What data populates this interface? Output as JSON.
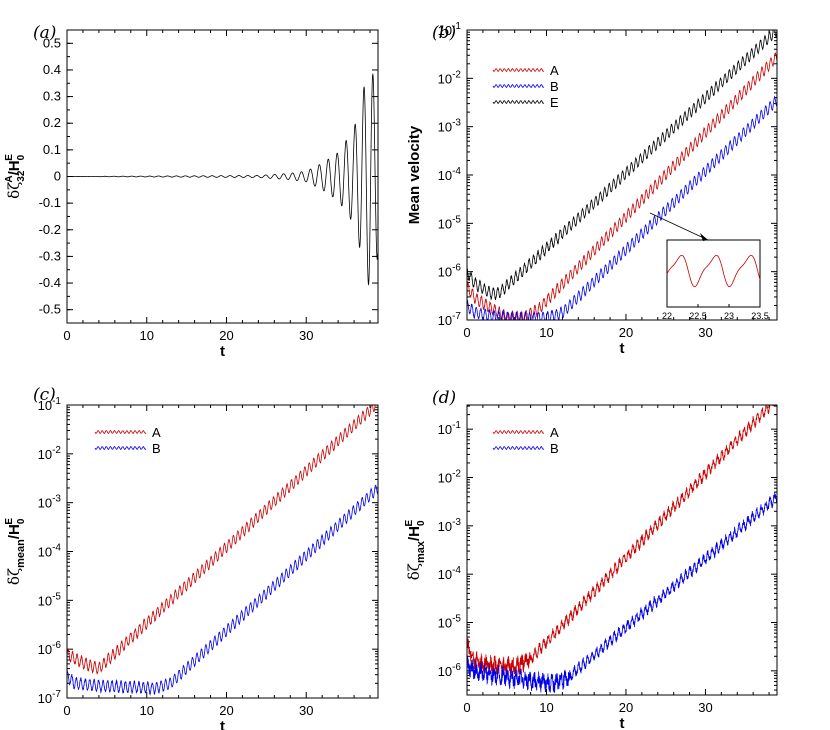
{
  "chart_data": [
    {
      "panel": "(a)",
      "type": "line",
      "xlabel": "t",
      "ylabel": "δζ^A_32/H^E_0",
      "xlim": [
        0,
        39
      ],
      "ylim": [
        -0.55,
        0.55
      ],
      "xticks": [
        "0",
        "10",
        "20",
        "30"
      ],
      "yticks": [
        "0.5",
        "0.4",
        "0.3",
        "0.2",
        "0.1",
        "0",
        "-0.1",
        "-0.2",
        "-0.3",
        "-0.4",
        "-0.5"
      ],
      "series": [
        {
          "name": "δζ^A_32",
          "color": "#000000",
          "x": [
            0,
            24,
            28,
            30,
            32,
            34,
            36,
            38,
            39
          ],
          "envelope": [
            0,
            0.004,
            0.012,
            0.02,
            0.05,
            0.09,
            0.18,
            0.43,
            0.3
          ]
        }
      ]
    },
    {
      "panel": "(b)",
      "type": "line",
      "yscale": "log",
      "xlabel": "t",
      "ylabel": "Mean velocity",
      "xlim": [
        0,
        39
      ],
      "ylim_exp": [
        -7,
        -1
      ],
      "xticks": [
        "0",
        "10",
        "20",
        "30"
      ],
      "legend": [
        "A",
        "B",
        "E"
      ],
      "series": [
        {
          "name": "A",
          "color": "#cc0000",
          "x": [
            0,
            1,
            3,
            5,
            7,
            9,
            39
          ],
          "log10y": [
            -6.3,
            -6.55,
            -6.75,
            -6.95,
            -6.95,
            -6.78,
            -1.55
          ]
        },
        {
          "name": "B",
          "color": "#0000ee",
          "x": [
            0,
            1,
            3,
            6,
            10,
            12,
            39
          ],
          "log10y": [
            -6.7,
            -6.85,
            -6.92,
            -6.96,
            -6.95,
            -6.85,
            -2.45
          ]
        },
        {
          "name": "E",
          "color": "#000000",
          "x": [
            0,
            1,
            3,
            4,
            39
          ],
          "log10y": [
            -6.0,
            -6.25,
            -6.45,
            -6.45,
            -1.0
          ]
        }
      ],
      "inset": {
        "xlim": [
          22,
          23.5
        ],
        "xticks": [
          "22",
          "22.5",
          "23",
          "23.5"
        ],
        "series": "A"
      }
    },
    {
      "panel": "(c)",
      "type": "line",
      "yscale": "log",
      "xlabel": "t",
      "ylabel": "δζ_mean/H^E_0",
      "xlim": [
        0,
        39
      ],
      "ylim_exp": [
        -7,
        -1
      ],
      "xticks": [
        "0",
        "10",
        "20",
        "30"
      ],
      "legend": [
        "A",
        "B"
      ],
      "series": [
        {
          "name": "A",
          "color": "#cc0000",
          "x": [
            0,
            1,
            3,
            4,
            39
          ],
          "log10y": [
            -6.1,
            -6.2,
            -6.35,
            -6.4,
            -0.95
          ]
        },
        {
          "name": "B",
          "color": "#0000ee",
          "x": [
            0,
            1,
            4,
            8,
            11,
            13,
            39
          ],
          "log10y": [
            -6.55,
            -6.7,
            -6.75,
            -6.78,
            -6.8,
            -6.7,
            -2.7
          ]
        }
      ]
    },
    {
      "panel": "(d)",
      "type": "line",
      "yscale": "log",
      "xlabel": "t",
      "ylabel": "δζ_max/H^E_0",
      "xlim": [
        0,
        39
      ],
      "ylim_exp": [
        -6.5,
        -0.5
      ],
      "xticks": [
        "0",
        "10",
        "20",
        "30"
      ],
      "legend": [
        "A",
        "B"
      ],
      "series": [
        {
          "name": "A",
          "color": "#cc0000",
          "x": [
            0,
            1,
            3,
            6,
            8,
            39
          ],
          "log10y": [
            -5.5,
            -5.8,
            -5.9,
            -5.9,
            -5.75,
            -0.35
          ]
        },
        {
          "name": "B",
          "color": "#0000ee",
          "x": [
            0,
            1,
            4,
            8,
            11,
            13,
            39
          ],
          "log10y": [
            -5.9,
            -6.0,
            -6.1,
            -6.2,
            -6.25,
            -6.1,
            -2.4
          ]
        }
      ]
    }
  ]
}
